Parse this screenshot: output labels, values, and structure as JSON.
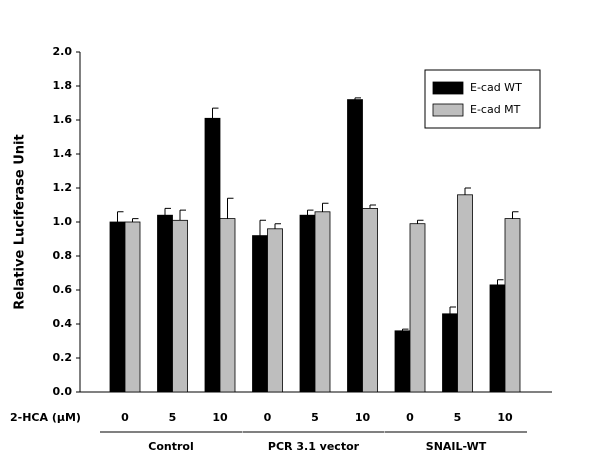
{
  "chart_data": {
    "type": "bar",
    "y_label": "Relative Luciferase Unit",
    "x_label": "2-HCA (μM)",
    "groups": [
      {
        "name": "Control",
        "categories": [
          "0",
          "5",
          "10"
        ]
      },
      {
        "name": "PCR 3.1 vector",
        "categories": [
          "0",
          "5",
          "10"
        ]
      },
      {
        "name": "SNAIL-WT",
        "categories": [
          "0",
          "5",
          "10"
        ]
      }
    ],
    "series": [
      {
        "name": "E-cad WT",
        "color": "#000000",
        "values": [
          1.0,
          1.04,
          1.61,
          0.92,
          1.04,
          1.72,
          0.36,
          0.46,
          0.63
        ],
        "errors": [
          0.06,
          0.04,
          0.06,
          0.09,
          0.03,
          0.01,
          0.01,
          0.04,
          0.03
        ]
      },
      {
        "name": "E-cad MT",
        "color": "#bebebe",
        "values": [
          1.0,
          1.01,
          1.02,
          0.96,
          1.06,
          1.08,
          0.99,
          1.16,
          1.02
        ],
        "errors": [
          0.02,
          0.06,
          0.12,
          0.03,
          0.05,
          0.02,
          0.02,
          0.04,
          0.04
        ]
      }
    ],
    "ylim": [
      0,
      2
    ],
    "yticks": [
      {
        "value": 0,
        "label": "0.0"
      },
      0.2,
      0.4,
      0.6,
      0.8,
      {
        "value": 1,
        "label": "1.0"
      },
      1.2,
      1.4,
      1.6,
      1.8,
      {
        "value": 2,
        "label": "2.0"
      }
    ],
    "legend": "top-right"
  }
}
